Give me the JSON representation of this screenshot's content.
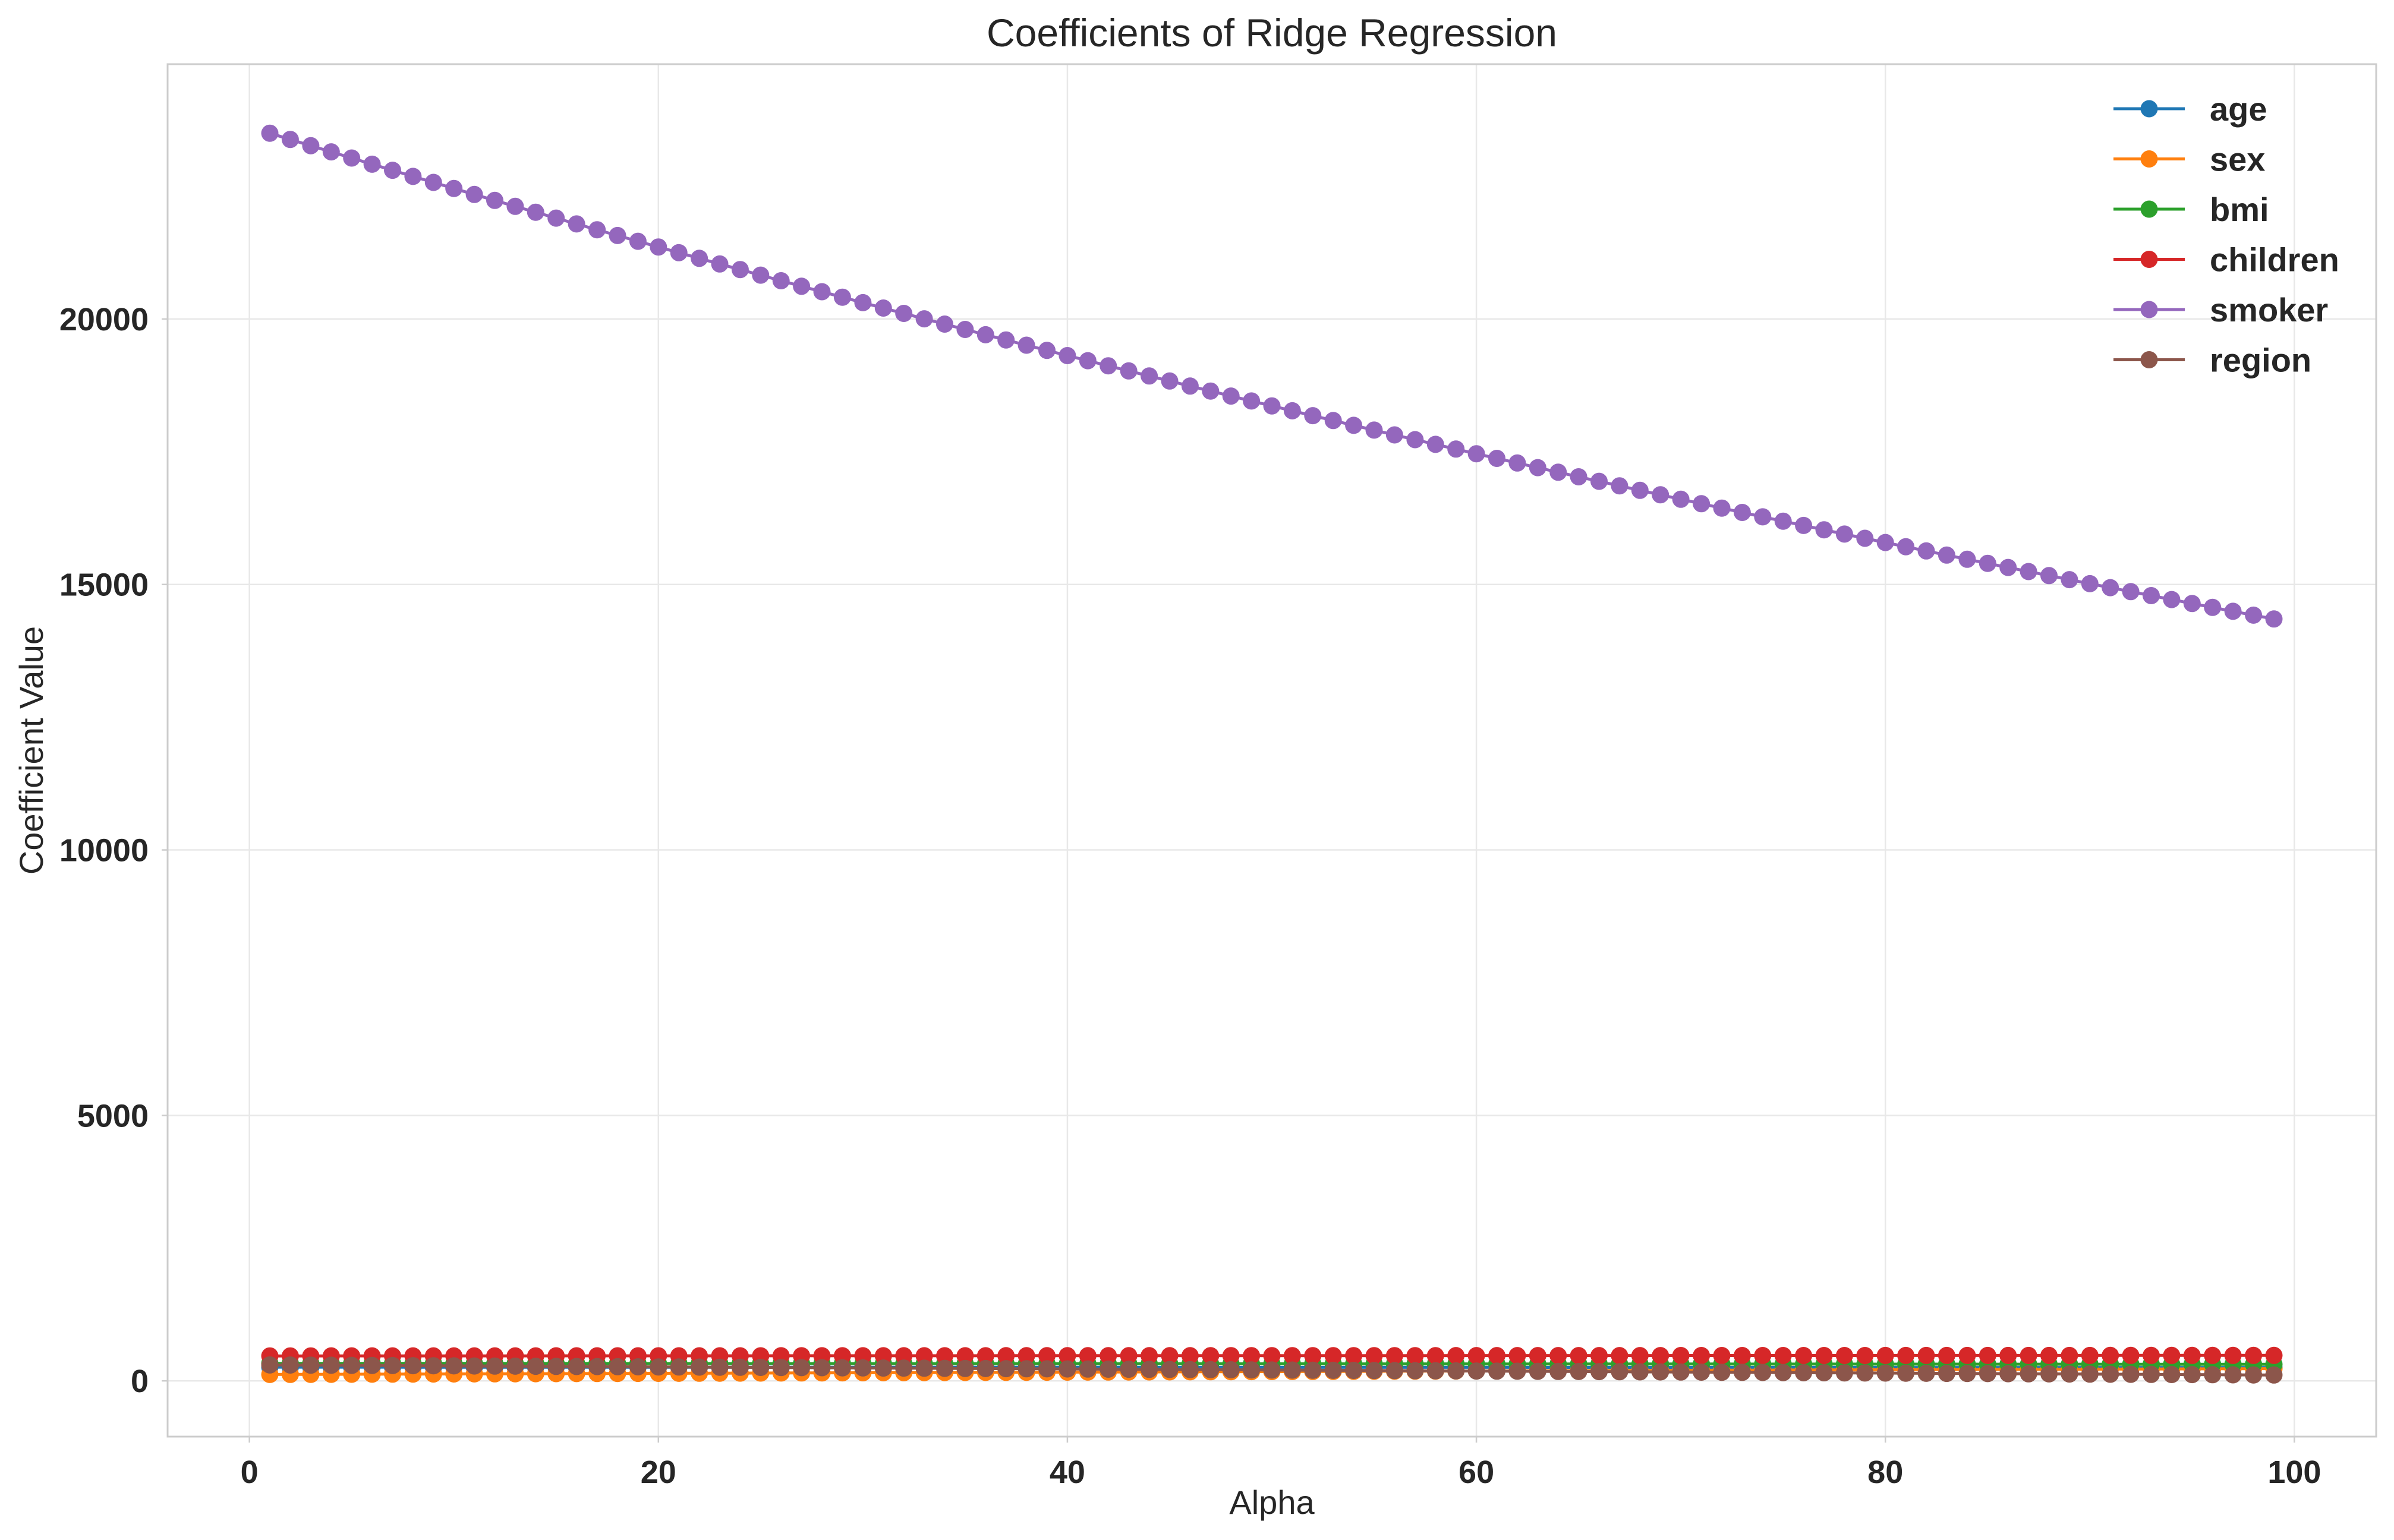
{
  "chart_data": {
    "type": "line",
    "title": "Coefficients of Ridge Regression",
    "xlabel": "Alpha",
    "ylabel": "Coefficient Value",
    "xlim": [
      -4,
      104
    ],
    "ylim": [
      -1050,
      24800
    ],
    "x_ticks": [
      0,
      20,
      40,
      60,
      80,
      100
    ],
    "y_ticks": [
      0,
      5000,
      10000,
      15000,
      20000
    ],
    "x_tick_labels": [
      "0",
      "20",
      "40",
      "60",
      "80",
      "100"
    ],
    "y_tick_labels": [
      "0",
      "5000",
      "10000",
      "15000",
      "20000"
    ],
    "grid": true,
    "markers": "circle",
    "legend_position": "top-right",
    "x_range": {
      "start": 1,
      "end": 99,
      "step": 1
    },
    "series": [
      {
        "name": "age",
        "color": "#1f77b4",
        "start": 258,
        "end": 252
      },
      {
        "name": "sex",
        "color": "#ff7f0e",
        "start": 120,
        "end": 230
      },
      {
        "name": "bmi",
        "color": "#2ca02c",
        "start": 330,
        "end": 312
      },
      {
        "name": "children",
        "color": "#d62728",
        "start": 470,
        "end": 480
      },
      {
        "name": "smoker",
        "color": "#9467bd",
        "start": 23500,
        "end": 14350,
        "curve": "decay"
      },
      {
        "name": "region",
        "color": "#8c564b",
        "start": 300,
        "end": 110
      }
    ]
  }
}
